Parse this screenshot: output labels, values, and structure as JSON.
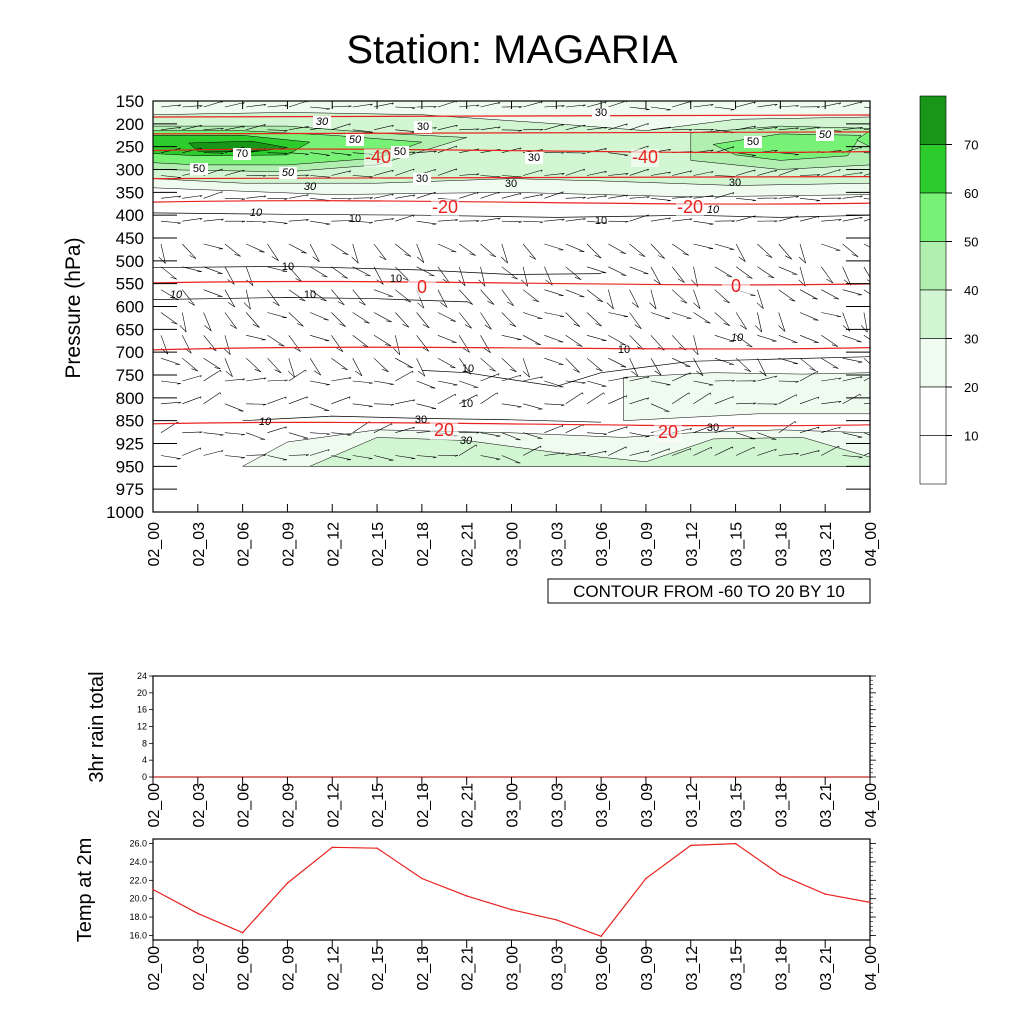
{
  "title": "Station: MAGARIA",
  "colors": {
    "isotherm": "#e8231f",
    "speed_line": "#000000",
    "barb": "#000000",
    "fill_20_30": "#eefbee",
    "fill_30_40": "#d2f5d2",
    "fill_40_50": "#b1efb1",
    "fill_50_60": "#77f277",
    "fill_60_70": "#2dcc2d",
    "fill_70_80": "#179617",
    "temp_line": "#e8231f"
  },
  "main_plot": {
    "ylabel": "Pressure (hPa)",
    "contour_info": "CONTOUR FROM -60 TO 20 BY 10",
    "colorbar_labels": [
      "10",
      "20",
      "30",
      "40",
      "50",
      "60",
      "70"
    ]
  },
  "chart_data": [
    {
      "type": "heatmap",
      "title": "Station: MAGARIA",
      "ylabel": "Pressure (hPa)",
      "ylim": [
        1000,
        150
      ],
      "x_labels": [
        "02_00",
        "02_03",
        "02_06",
        "02_09",
        "02_12",
        "02_15",
        "02_18",
        "02_21",
        "03_00",
        "03_03",
        "03_06",
        "03_09",
        "03_12",
        "03_15",
        "03_18",
        "03_21",
        "04_00"
      ],
      "pressure_levels": [
        "150",
        "200",
        "250",
        "300",
        "350",
        "400",
        "450",
        "500",
        "550",
        "600",
        "650",
        "700",
        "750",
        "800",
        "850",
        "925",
        "950",
        "975",
        "1000"
      ],
      "wind_speed_contour_labels": [
        "30",
        "30",
        "30",
        "50",
        "50",
        "50",
        "50",
        "70",
        "50",
        "50",
        "30",
        "30",
        "30",
        "30",
        "30",
        "10",
        "10",
        "10",
        "10",
        "10",
        "10",
        "10",
        "10",
        "10",
        "10",
        "10",
        "10",
        "10",
        "30",
        "30",
        "30"
      ],
      "temperature_isotherm_labels": [
        "-40",
        "-40",
        "-20",
        "-20",
        "0",
        "0",
        "20",
        "20"
      ],
      "temperature_isotherms": [
        {
          "level": -40,
          "pressure_hPa": 265
        },
        {
          "level": -20,
          "pressure_hPa": 378
        },
        {
          "level": 0,
          "pressure_hPa": 555
        },
        {
          "level": 20,
          "pressure_hPa": 870
        }
      ],
      "fill_levels": [
        10,
        20,
        30,
        40,
        50,
        60,
        70
      ],
      "contour_info": "CONTOUR FROM -60 TO 20 BY 10"
    },
    {
      "type": "line",
      "ylabel": "3hr rain total",
      "categories": [
        "02_00",
        "02_03",
        "02_06",
        "02_09",
        "02_12",
        "02_15",
        "02_18",
        "02_21",
        "03_00",
        "03_03",
        "03_06",
        "03_09",
        "03_12",
        "03_15",
        "03_18",
        "03_21",
        "04_00"
      ],
      "y_ticks": [
        "0",
        "4",
        "8",
        "12",
        "16",
        "20",
        "24"
      ],
      "ylim": [
        0,
        24
      ],
      "values": [
        0,
        0,
        0,
        0,
        0,
        0,
        0,
        0,
        0,
        0,
        0,
        0,
        0,
        0,
        0,
        0,
        0
      ]
    },
    {
      "type": "line",
      "ylabel": "Temp at 2m",
      "categories": [
        "02_00",
        "02_03",
        "02_06",
        "02_09",
        "02_12",
        "02_15",
        "02_18",
        "02_21",
        "03_00",
        "03_03",
        "03_06",
        "03_09",
        "03_12",
        "03_15",
        "03_18",
        "03_21",
        "04_00"
      ],
      "y_ticks": [
        "16.0",
        "18.0",
        "20.0",
        "22.0",
        "24.0",
        "26.0"
      ],
      "ylim": [
        15.5,
        26.5
      ],
      "values": [
        21.0,
        18.4,
        16.3,
        21.7,
        25.6,
        25.5,
        22.2,
        20.3,
        18.8,
        17.7,
        15.9,
        22.2,
        25.8,
        26.0,
        22.6,
        20.5,
        19.6
      ]
    }
  ]
}
